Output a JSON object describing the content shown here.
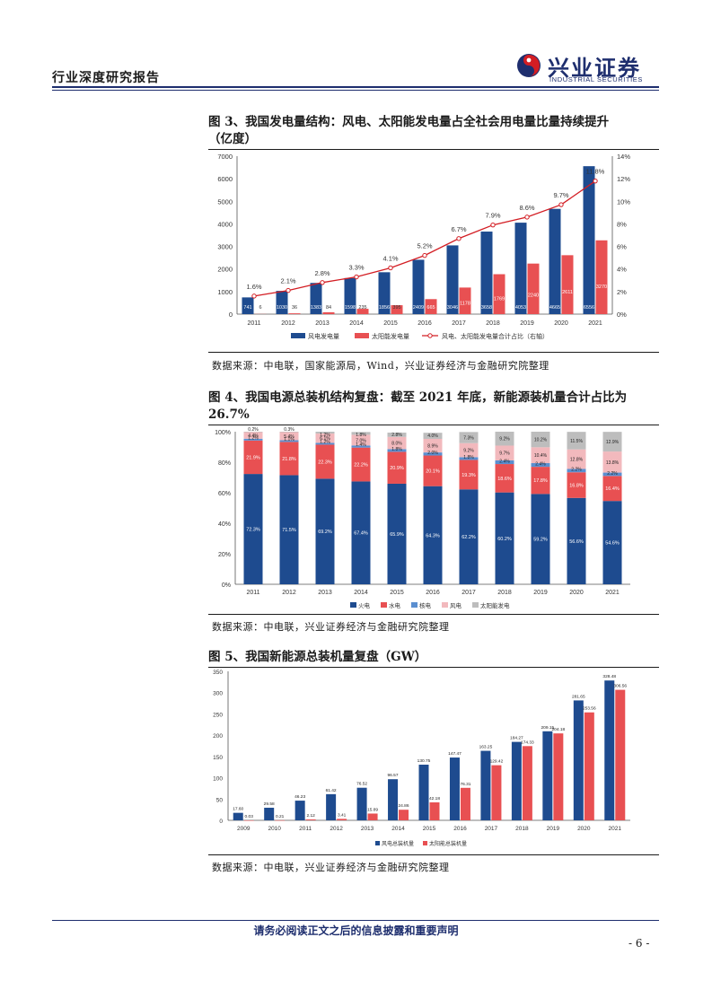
{
  "header": {
    "report_type": "行业深度研究报告",
    "logo_cn": "兴业证券",
    "logo_en": "INDUSTRIAL SECURITIES"
  },
  "colors": {
    "navy": "#1e4b8f",
    "red": "#e85052",
    "blue": "#5b8fd0",
    "pink": "#f2b9bd",
    "gray": "#bdbdbd",
    "brand": "#1e2e6e",
    "line": "#d31d23"
  },
  "figures": [
    {
      "title_line1": "图 3、我国发电量结构：风电、太阳能发电量占全社会用电量比量持续提升",
      "title_line2": "（亿度）",
      "source": "数据来源：中电联，国家能源局，Wind，兴业证券经济与金融研究院整理"
    },
    {
      "title_line1": "图 4、我国电源总装机结构复盘：截至 2021 年底，新能源装机量合计占比为",
      "title_line2": "26.7%",
      "source": "数据来源：中电联，兴业证券经济与金融研究院整理"
    },
    {
      "title_line1": "图 5、我国新能源总装机量复盘（GW）",
      "source": "数据来源：中电联，兴业证券经济与金融研究院整理"
    }
  ],
  "chart_data": [
    {
      "type": "bar",
      "categories": [
        "2011",
        "2012",
        "2013",
        "2014",
        "2015",
        "2016",
        "2017",
        "2018",
        "2019",
        "2020",
        "2021"
      ],
      "series": [
        {
          "name": "风电发电量",
          "values": [
            741,
            1030,
            1383,
            1598,
            1856,
            2409,
            3046,
            3658,
            4053,
            4665,
            6556
          ]
        },
        {
          "name": "太阳能发电量",
          "values": [
            6,
            36,
            84,
            235,
            395,
            665,
            1178,
            1769,
            2240,
            2611,
            3270
          ]
        },
        {
          "name": "风电、太阳能发电量合计占比（右轴）",
          "type": "line",
          "axis": "right",
          "values": [
            1.6,
            2.1,
            2.8,
            3.3,
            4.1,
            5.2,
            6.7,
            7.9,
            8.6,
            9.7,
            11.8
          ]
        }
      ],
      "value_labels_left": [
        "741",
        "1030",
        "1383",
        "1598",
        "1856",
        "2409",
        "3046",
        "3658",
        "4053",
        "4665",
        "6556"
      ],
      "value_labels_right": [
        "6",
        "36",
        "84",
        "235",
        "395",
        "665",
        "1178",
        "1769",
        "2240",
        "2611",
        "3270"
      ],
      "line_labels": [
        "1.6%",
        "2.1%",
        "2.8%",
        "3.3%",
        "4.1%",
        "5.2%",
        "6.7%",
        "7.9%",
        "8.6%",
        "9.7%",
        "11.8%"
      ],
      "ylim": [
        0,
        7000
      ],
      "y_ticks": [
        "0",
        "1000",
        "2000",
        "3000",
        "4000",
        "5000",
        "6000",
        "7000"
      ],
      "y2lim": [
        0,
        14
      ],
      "y2_ticks": [
        "0%",
        "2%",
        "4%",
        "6%",
        "8%",
        "10%",
        "12%",
        "14%"
      ],
      "legend": [
        "风电发电量",
        "太阳能发电量",
        "风电、太阳能发电量合计占比（右轴）"
      ]
    },
    {
      "type": "bar",
      "stacked": true,
      "percent": true,
      "categories": [
        "2011",
        "2012",
        "2013",
        "2014",
        "2015",
        "2016",
        "2017",
        "2018",
        "2019",
        "2020",
        "2021"
      ],
      "series": [
        {
          "name": "火电",
          "values": [
            72.3,
            71.5,
            69.2,
            67.4,
            65.9,
            64.3,
            62.2,
            60.2,
            59.2,
            56.6,
            54.6
          ]
        },
        {
          "name": "水电",
          "values": [
            21.9,
            21.8,
            22.3,
            22.2,
            20.9,
            20.1,
            19.3,
            18.6,
            17.8,
            16.8,
            16.4
          ]
        },
        {
          "name": "核电",
          "values": [
            1.2,
            1.1,
            1.2,
            1.4,
            1.8,
            2.0,
            1.8,
            2.4,
            2.4,
            2.2,
            2.2
          ]
        },
        {
          "name": "风电",
          "values": [
            4.4,
            5.4,
            6.1,
            7.0,
            8.0,
            8.9,
            9.2,
            9.7,
            10.4,
            12.8,
            13.8
          ]
        },
        {
          "name": "太阳能发电",
          "values": [
            0.2,
            0.3,
            1.2,
            1.8,
            2.8,
            4.0,
            7.3,
            9.2,
            10.2,
            11.5,
            12.9
          ]
        }
      ],
      "labels": {
        "火电": [
          "72.3%",
          "71.5%",
          "69.2%",
          "67.4%",
          "65.9%",
          "64.3%",
          "62.2%",
          "60.2%",
          "59.2%",
          "56.6%",
          "54.6%"
        ],
        "水电": [
          "21.9%",
          "21.8%",
          "22.3%",
          "22.2%",
          "20.9%",
          "20.1%",
          "19.3%",
          "18.6%",
          "17.8%",
          "16.8%",
          "16.4%"
        ],
        "核电": [
          "1.2%",
          "1.1%",
          "1.2%",
          "1.4%",
          "1.8%",
          "2.0%",
          "1.8%",
          "2.4%",
          "2.4%",
          "2.2%",
          "2.2%"
        ],
        "风电": [
          "4.4%",
          "5.4%",
          "6.1%",
          "7.0%",
          "8.0%",
          "8.9%",
          "9.2%",
          "9.7%",
          "10.4%",
          "12.8%",
          "13.8%"
        ],
        "太阳能发电": [
          "0.2%",
          "0.3%",
          "1.2%",
          "1.8%",
          "2.8%",
          "4.0%",
          "7.3%",
          "9.2%",
          "10.2%",
          "11.5%",
          "12.9%"
        ]
      },
      "ylim": [
        0,
        100
      ],
      "y_ticks": [
        "0%",
        "20%",
        "40%",
        "60%",
        "80%",
        "100%"
      ],
      "legend": [
        "火电",
        "水电",
        "核电",
        "风电",
        "太阳能发电"
      ]
    },
    {
      "type": "bar",
      "categories": [
        "2009",
        "2010",
        "2011",
        "2012",
        "2013",
        "2014",
        "2015",
        "2016",
        "2017",
        "2018",
        "2019",
        "2020",
        "2021"
      ],
      "series": [
        {
          "name": "风电总装机量",
          "values": [
            17.6,
            29.58,
            46.23,
            61.42,
            76.52,
            96.57,
            130.75,
            147.47,
            163.25,
            184.27,
            209.15,
            281.65,
            328.48
          ]
        },
        {
          "name": "太阳能总装机量",
          "values": [
            0.03,
            0.21,
            2.12,
            3.41,
            15.89,
            24.86,
            42.18,
            76.31,
            129.42,
            174.33,
            204.18,
            253.56,
            306.56
          ]
        }
      ],
      "value_labels_left": [
        "17.60",
        "29.58",
        "46.23",
        "61.42",
        "76.52",
        "96.57",
        "130.75",
        "147.47",
        "163.25",
        "184.27",
        "209.15",
        "281.65",
        "328.48"
      ],
      "value_labels_right": [
        "0.03",
        "0.21",
        "2.12",
        "3.41",
        "15.89",
        "24.86",
        "42.18",
        "76.31",
        "129.42",
        "174.33",
        "204.18",
        "253.56",
        "306.56"
      ],
      "ylim": [
        0,
        350
      ],
      "y_ticks": [
        "0",
        "50",
        "100",
        "150",
        "200",
        "250",
        "300",
        "350"
      ],
      "legend": [
        "风电总装机量",
        "太阳能总装机量"
      ]
    }
  ],
  "footer": {
    "disclaimer": "请务必阅读正文之后的信息披露和重要声明",
    "page": "- 6 -"
  }
}
